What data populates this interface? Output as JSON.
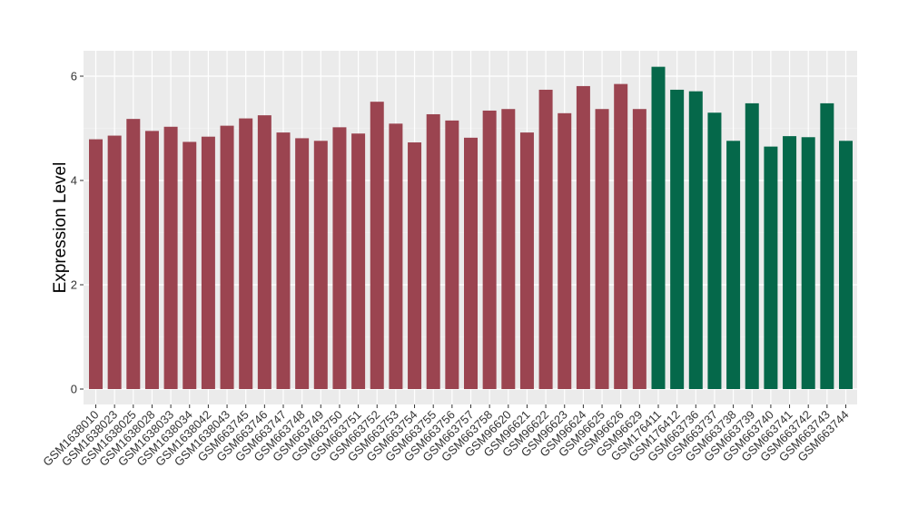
{
  "chart_data": {
    "type": "bar",
    "title": "",
    "xlabel": "",
    "ylabel": "Expression Level",
    "ylim": [
      0,
      6.4
    ],
    "yticks": [
      0,
      2,
      4,
      6
    ],
    "grid": true,
    "background": "#ebebeb",
    "colors": {
      "group_a": "#9b4450",
      "group_b": "#05684a"
    },
    "categories": [
      "GSM1638010",
      "GSM1638023",
      "GSM1638025",
      "GSM1638028",
      "GSM1638033",
      "GSM1638034",
      "GSM1638042",
      "GSM1638043",
      "GSM663745",
      "GSM663746",
      "GSM663747",
      "GSM663748",
      "GSM663749",
      "GSM663750",
      "GSM663751",
      "GSM663752",
      "GSM663753",
      "GSM663754",
      "GSM663755",
      "GSM663756",
      "GSM663757",
      "GSM663758",
      "GSM96620",
      "GSM96621",
      "GSM96622",
      "GSM96623",
      "GSM96624",
      "GSM96625",
      "GSM96626",
      "GSM96629",
      "GSM176411",
      "GSM176412",
      "GSM663736",
      "GSM663737",
      "GSM663738",
      "GSM663739",
      "GSM663740",
      "GSM663741",
      "GSM663742",
      "GSM663743",
      "GSM663744"
    ],
    "values": [
      4.79,
      4.86,
      5.18,
      4.95,
      5.03,
      4.74,
      4.84,
      5.05,
      5.19,
      5.25,
      4.92,
      4.81,
      4.76,
      5.02,
      4.9,
      5.51,
      5.09,
      4.73,
      5.27,
      5.15,
      4.82,
      5.34,
      5.37,
      4.92,
      5.74,
      5.29,
      5.81,
      5.37,
      5.85,
      5.37,
      6.18,
      5.74,
      5.71,
      5.3,
      4.76,
      5.48,
      4.65,
      4.85,
      4.83,
      5.48,
      4.76
    ],
    "groups": [
      "a",
      "a",
      "a",
      "a",
      "a",
      "a",
      "a",
      "a",
      "a",
      "a",
      "a",
      "a",
      "a",
      "a",
      "a",
      "a",
      "a",
      "a",
      "a",
      "a",
      "a",
      "a",
      "a",
      "a",
      "a",
      "a",
      "a",
      "a",
      "a",
      "a",
      "b",
      "b",
      "b",
      "b",
      "b",
      "b",
      "b",
      "b",
      "b",
      "b",
      "b"
    ]
  }
}
